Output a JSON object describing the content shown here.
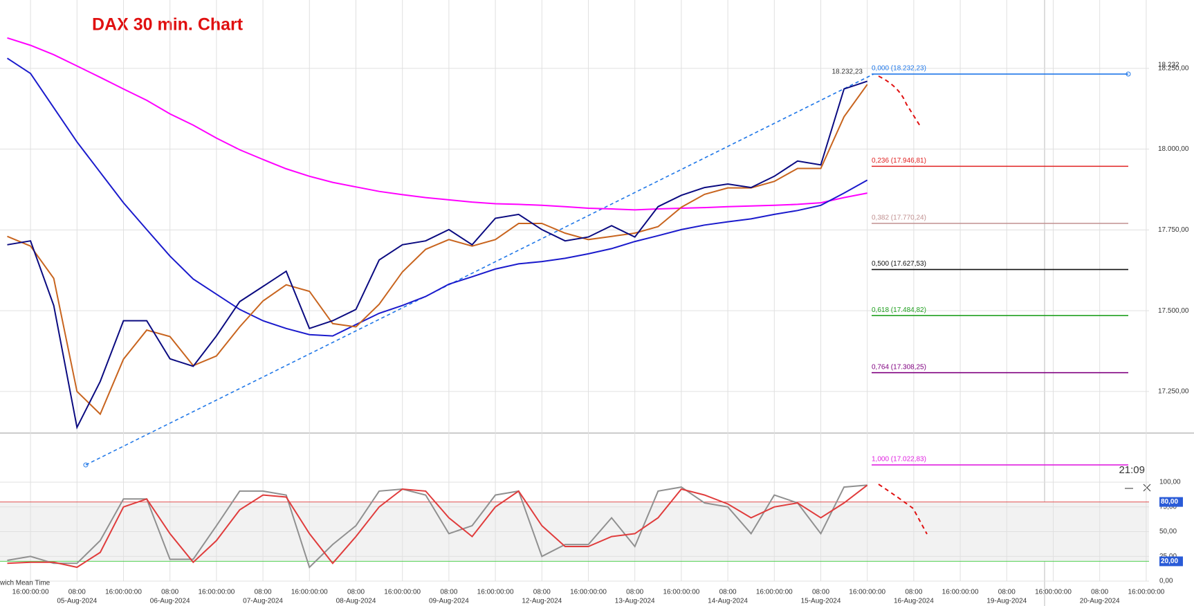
{
  "chart_data": [
    {
      "type": "line",
      "title": "DAX 30 min. Chart",
      "ylim": [
        16993,
        18457
      ],
      "yticks": [
        {
          "value": 17250,
          "label": "17.250,00"
        },
        {
          "value": 17500,
          "label": "17.500,00"
        },
        {
          "value": 17750,
          "label": "17.750,00"
        },
        {
          "value": 18000,
          "label": "18.000,00"
        },
        {
          "value": 18250,
          "label": "18.250,00"
        }
      ],
      "grid": true,
      "series": [
        {
          "color": "#ff00ff",
          "values": [
            18344,
            18321,
            18292,
            18257,
            18222,
            18186,
            18151,
            18109,
            18074,
            18034,
            17998,
            17968,
            17939,
            17916,
            17897,
            17883,
            17869,
            17859,
            17850,
            17843,
            17836,
            17831,
            17829,
            17826,
            17822,
            17817,
            17815,
            17812,
            17815,
            17817,
            17819,
            17822,
            17824,
            17826,
            17829,
            17834,
            17850,
            17864,
            null,
            null,
            null,
            null,
            null,
            null,
            null,
            null,
            null,
            null,
            null,
            null
          ]
        },
        {
          "color": "#1a1acc",
          "values": [
            18281,
            18234,
            18128,
            18022,
            17928,
            17834,
            17751,
            17669,
            17598,
            17551,
            17504,
            17469,
            17445,
            17426,
            17422,
            17457,
            17492,
            17516,
            17544,
            17582,
            17605,
            17629,
            17645,
            17652,
            17662,
            17676,
            17692,
            17714,
            17732,
            17751,
            17765,
            17775,
            17784,
            17798,
            17810,
            17826,
            17864,
            17904,
            null,
            null,
            null,
            null,
            null,
            null,
            null,
            null,
            null,
            null,
            null,
            null
          ]
        },
        {
          "color": "#c8641e",
          "values": [
            17730,
            17700,
            17600,
            17250,
            17180,
            17350,
            17440,
            17420,
            17330,
            17360,
            17450,
            17530,
            17580,
            17560,
            17460,
            17450,
            17520,
            17620,
            17690,
            17720,
            17700,
            17720,
            17770,
            17770,
            17740,
            17720,
            17730,
            17740,
            17760,
            17820,
            17860,
            17880,
            17880,
            17900,
            17940,
            17940,
            18100,
            18200,
            null,
            null,
            null,
            null,
            null,
            null,
            null,
            null,
            null,
            null,
            null,
            null
          ]
        },
        {
          "color": "#0a0a80",
          "values": [
            17704,
            17716,
            17516,
            17139,
            17281,
            17469,
            17469,
            17351,
            17328,
            17422,
            17528,
            17575,
            17622,
            17445,
            17469,
            17504,
            17657,
            17704,
            17716,
            17751,
            17704,
            17786,
            17798,
            17751,
            17716,
            17728,
            17763,
            17728,
            17822,
            17857,
            17881,
            17892,
            17881,
            17916,
            17963,
            17951,
            18186,
            18210,
            null,
            null,
            null,
            null,
            null,
            null,
            null,
            null,
            null,
            null,
            null,
            null
          ]
        }
      ],
      "fib_levels": [
        {
          "label": "0,000 (18.232,23)",
          "value": 18232.23,
          "color": "#1f77e8"
        },
        {
          "label": "0,236 (17.946,81)",
          "value": 17946.81,
          "color": "#e02020"
        },
        {
          "label": "0,382 (17.770,24)",
          "value": 17770.24,
          "color": "#c09090"
        },
        {
          "label": "0,500 (17.627,53)",
          "value": 17627.53,
          "color": "#111111"
        },
        {
          "label": "0,618 (17.484,82)",
          "value": 17484.82,
          "color": "#20a020"
        },
        {
          "label": "0,764 (17.308,25)",
          "value": 17308.25,
          "color": "#800080"
        },
        {
          "label": "1,000 (17.022,83)",
          "value": 17022.83,
          "color": "#e020e0"
        }
      ],
      "high_label": "18.232,23",
      "right_label": "18.232",
      "time_label": "21:09"
    },
    {
      "type": "line",
      "ylim": [
        0,
        100
      ],
      "yticks": [
        {
          "value": 0,
          "label": "0,00"
        },
        {
          "value": 25,
          "label": "25,00"
        },
        {
          "value": 50,
          "label": "50,00"
        },
        {
          "value": 75,
          "label": "75,00"
        },
        {
          "value": 100,
          "label": "100,00"
        }
      ],
      "levels": [
        {
          "value": 80,
          "label": "80,00",
          "color": "#e05050"
        },
        {
          "value": 20,
          "label": "20,00",
          "color": "#50d050"
        }
      ],
      "categories": [
        null,
        "16:00:00:00",
        null,
        "08:00",
        null,
        "16:00:00:00",
        null,
        "08:00",
        null,
        "16:00:00:00",
        null,
        "08:00",
        null,
        "16:00:00:00",
        null,
        "08:00",
        null,
        "16:00:00:00",
        null,
        "08:00",
        null,
        "16:00:00:00",
        null,
        "08:00",
        null,
        "16:00:00:00",
        null,
        "08:00",
        null,
        "16:00:00:00",
        null,
        "08:00",
        null,
        "16:00:00:00",
        null,
        "08:00",
        null,
        "16:00:00:00",
        null,
        "08:00",
        null,
        "16:00:00:00",
        null,
        "08:00",
        null,
        "16:00:00:00",
        null,
        "08:00",
        null,
        "16:00:00:00"
      ],
      "date_labels": [
        null,
        null,
        null,
        "05-Aug-2024",
        null,
        null,
        null,
        "06-Aug-2024",
        null,
        null,
        null,
        "07-Aug-2024",
        null,
        null,
        null,
        "08-Aug-2024",
        null,
        null,
        null,
        "09-Aug-2024",
        null,
        null,
        null,
        "12-Aug-2024",
        null,
        null,
        null,
        "13-Aug-2024",
        null,
        null,
        null,
        "14-Aug-2024",
        null,
        null,
        null,
        "15-Aug-2024",
        null,
        null,
        null,
        "16-Aug-2024",
        null,
        null,
        null,
        "19-Aug-2024",
        null,
        null,
        null,
        "20-Aug-2024",
        null,
        null
      ],
      "series": [
        {
          "color": "#909090",
          "values": [
            21,
            25,
            18,
            18,
            41,
            83,
            83,
            22,
            22,
            56,
            91,
            91,
            87,
            14,
            37,
            56,
            91,
            93,
            87,
            48,
            56,
            87,
            91,
            25,
            37,
            37,
            64,
            35,
            91,
            95,
            79,
            75,
            48,
            87,
            79,
            48,
            95,
            97,
            null,
            null,
            null,
            null,
            null,
            null,
            null,
            null,
            null,
            null,
            null,
            null
          ]
        },
        {
          "color": "#e03c3c",
          "values": [
            18,
            19,
            19,
            14,
            29,
            75,
            83,
            48,
            19,
            41,
            72,
            87,
            85,
            48,
            18,
            45,
            75,
            93,
            91,
            64,
            45,
            75,
            91,
            56,
            35,
            35,
            45,
            48,
            64,
            93,
            87,
            78,
            64,
            75,
            79,
            64,
            79,
            97,
            null,
            null,
            null,
            null,
            null,
            null,
            null,
            null,
            null,
            null,
            null,
            null
          ]
        }
      ],
      "timezone_label": "wich Mean Time"
    }
  ]
}
